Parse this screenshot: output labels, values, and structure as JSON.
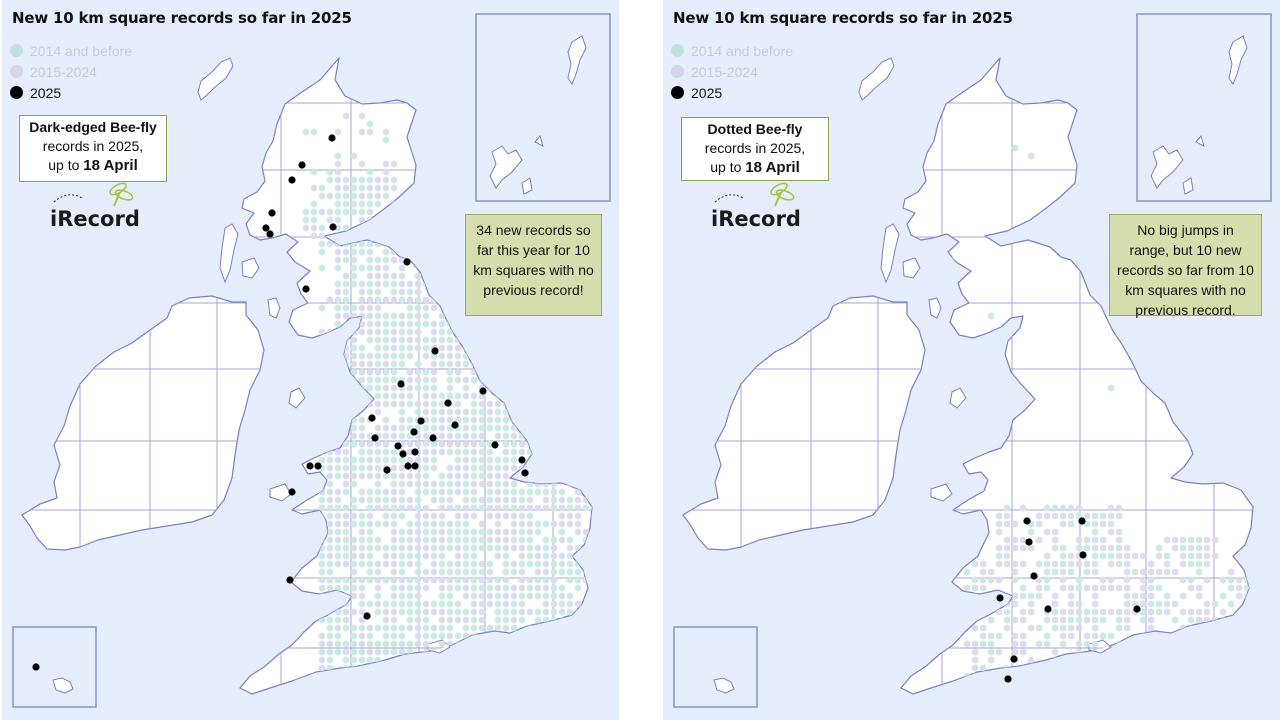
{
  "colors": {
    "old": "#cce9e3",
    "mid": "#dcdcef",
    "new": "#000000",
    "coast": "#7b7fc4",
    "grid": "#9a9ed2",
    "land": "#ffffff",
    "sea": "#e6edfc"
  },
  "legend": [
    {
      "label": "2014 and before",
      "color": "#bfe3dc"
    },
    {
      "label": "2015-2024",
      "color": "#d4d4ec"
    },
    {
      "label": "2025",
      "color": "#000000"
    }
  ],
  "logo_text": "iRecord",
  "panels": [
    {
      "title": "New 10 km square records so far in 2025",
      "callout": {
        "species": "Dark-edged Bee-fly",
        "line2": "records in 2025,",
        "prefix": "up to ",
        "date": "18 April"
      },
      "note": "34 new records so far this year for 10 km squares with no previous record!",
      "new_records": [
        [
          330,
          138
        ],
        [
          300,
          165
        ],
        [
          290,
          180
        ],
        [
          270,
          213
        ],
        [
          264,
          228
        ],
        [
          268,
          234
        ],
        [
          331,
          227
        ],
        [
          405,
          262
        ],
        [
          304,
          289
        ],
        [
          433,
          351
        ],
        [
          399,
          384
        ],
        [
          481,
          391
        ],
        [
          446,
          403
        ],
        [
          370,
          418
        ],
        [
          453,
          425
        ],
        [
          419,
          421
        ],
        [
          373,
          438
        ],
        [
          396,
          446
        ],
        [
          412,
          432
        ],
        [
          431,
          438
        ],
        [
          493,
          445
        ],
        [
          401,
          454
        ],
        [
          413,
          452
        ],
        [
          413,
          466
        ],
        [
          406,
          466
        ],
        [
          385,
          470
        ],
        [
          520,
          460
        ],
        [
          523,
          473
        ],
        [
          308,
          466
        ],
        [
          316,
          466
        ],
        [
          290,
          492
        ],
        [
          288,
          580
        ],
        [
          365,
          616
        ],
        [
          34,
          667
        ]
      ],
      "old_density": 0.55
    },
    {
      "title": "New 10 km square records so far in 2025",
      "callout": {
        "species": "Dotted Bee-fly",
        "line2": "records in 2025,",
        "prefix": "up to ",
        "date": "18 April"
      },
      "note": "No big jumps in range, but 10 new records so far from 10 km squares with no previous record.",
      "new_records": [
        [
          364,
          521
        ],
        [
          419,
          521
        ],
        [
          366,
          542
        ],
        [
          420,
          555
        ],
        [
          371,
          576
        ],
        [
          337,
          598
        ],
        [
          385,
          609
        ],
        [
          474,
          609
        ],
        [
          351,
          659
        ],
        [
          345,
          679
        ]
      ],
      "old_density": 0.4
    }
  ]
}
